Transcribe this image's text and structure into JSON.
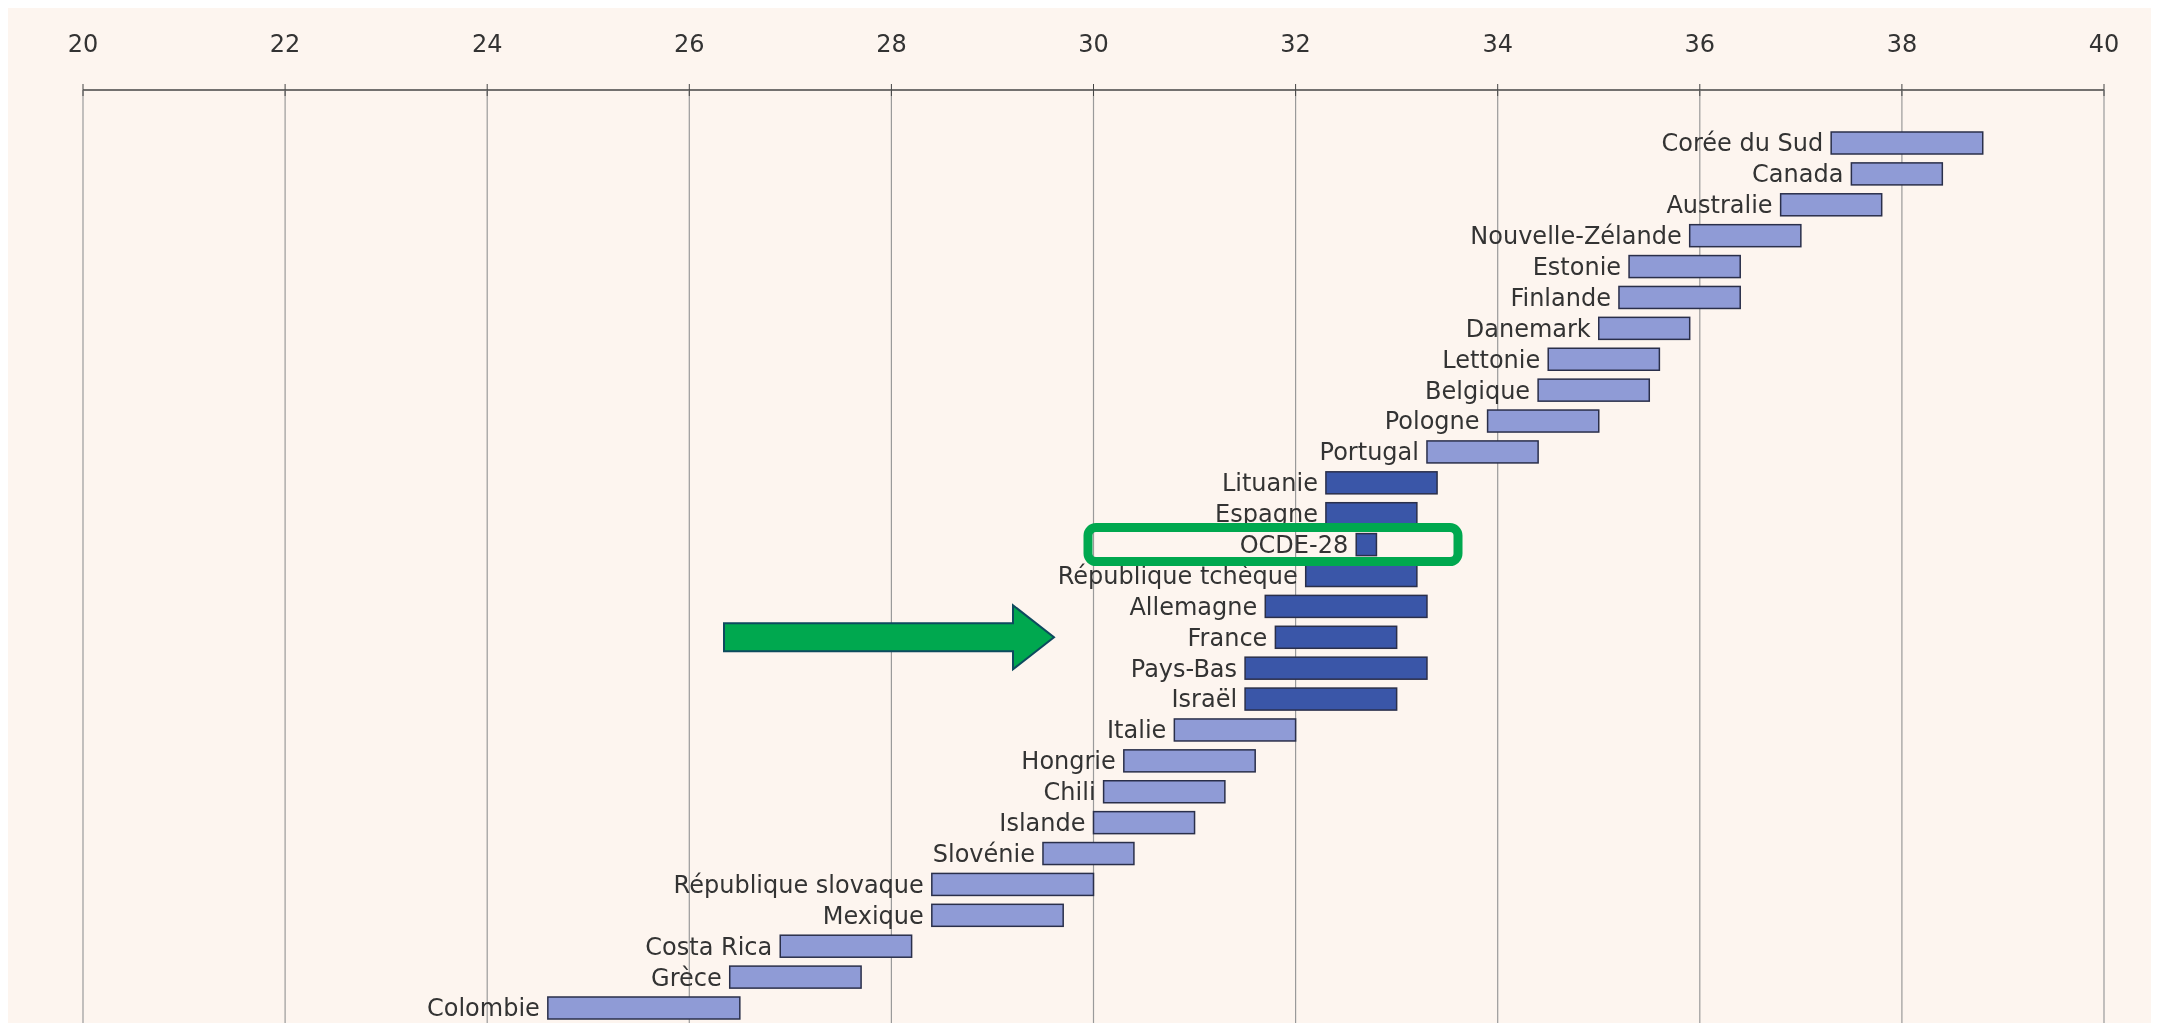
{
  "chart_data": {
    "type": "bar",
    "orientation": "horizontal",
    "categories": [
      "Corée du Sud",
      "Canada",
      "Australie",
      "Nouvelle-Zélande",
      "Estonie",
      "Finlande",
      "Danemark",
      "Lettonie",
      "Belgique",
      "Pologne",
      "Portugal",
      "Lituanie",
      "Espagne",
      "OCDE-28",
      "République tchèque",
      "Allemagne",
      "France",
      "Pays-Bas",
      "Israël",
      "Italie",
      "Hongrie",
      "Chili",
      "Islande",
      "Slovénie",
      "République slovaque",
      "Mexique",
      "Costa Rica",
      "Grèce",
      "Colombie"
    ],
    "base": [
      37.3,
      37.5,
      36.8,
      35.9,
      35.3,
      35.2,
      35.0,
      34.5,
      34.4,
      33.9,
      33.3,
      32.3,
      32.3,
      32.6,
      32.1,
      31.7,
      31.8,
      31.5,
      31.5,
      30.8,
      30.3,
      30.1,
      30.0,
      29.5,
      28.4,
      28.4,
      26.9,
      26.4,
      24.6
    ],
    "values": [
      1.5,
      0.9,
      1.0,
      1.1,
      1.1,
      1.2,
      0.9,
      1.1,
      1.1,
      1.1,
      1.1,
      1.1,
      0.9,
      0.2,
      1.1,
      1.6,
      1.2,
      1.8,
      1.5,
      1.2,
      1.3,
      1.2,
      1.0,
      0.9,
      1.6,
      1.3,
      1.3,
      1.3,
      1.9
    ],
    "colors": [
      "#8f9bd6",
      "#8f9bd6",
      "#8f9bd6",
      "#8f9bd6",
      "#8f9bd6",
      "#8f9bd6",
      "#8f9bd6",
      "#8f9bd6",
      "#8f9bd6",
      "#8f9bd6",
      "#8f9bd6",
      "#3a56a8",
      "#3a56a8",
      "#3a56a8",
      "#3a56a8",
      "#3a56a8",
      "#3a56a8",
      "#3a56a8",
      "#3a56a8",
      "#8f9bd6",
      "#8f9bd6",
      "#8f9bd6",
      "#8f9bd6",
      "#8f9bd6",
      "#8f9bd6",
      "#8f9bd6",
      "#8f9bd6",
      "#8f9bd6",
      "#8f9bd6"
    ],
    "xlim": [
      20,
      40
    ],
    "xticks": [
      20,
      22,
      24,
      26,
      28,
      30,
      32,
      34,
      36,
      38,
      40
    ],
    "grid": "x"
  }
}
